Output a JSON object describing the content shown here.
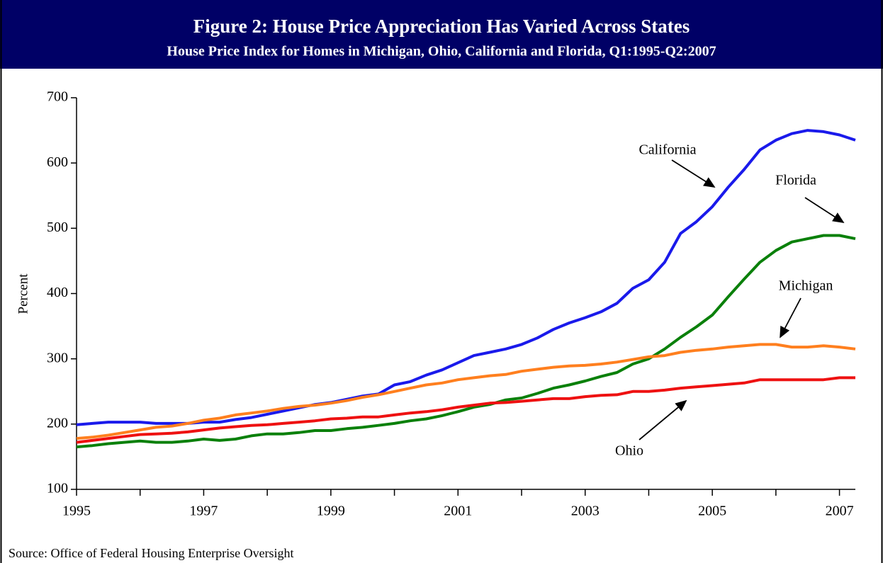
{
  "chart_data": {
    "type": "line",
    "title": "Figure 2: House Price Appreciation Has Varied Across States",
    "subtitle": "House Price Index for Homes in Michigan, Ohio, California and Florida, Q1:1995-Q2:2007",
    "y_label": "Percent",
    "source": "Source: Office of Federal Housing Enterprise Oversight",
    "x": [
      1995,
      1995.25,
      1995.5,
      1995.75,
      1996,
      1996.25,
      1996.5,
      1996.75,
      1997,
      1997.25,
      1997.5,
      1997.75,
      1998,
      1998.25,
      1998.5,
      1998.75,
      1999,
      1999.25,
      1999.5,
      1999.75,
      2000,
      2000.25,
      2000.5,
      2000.75,
      2001,
      2001.25,
      2001.5,
      2001.75,
      2002,
      2002.25,
      2002.5,
      2002.75,
      2003,
      2003.25,
      2003.5,
      2003.75,
      2004,
      2004.25,
      2004.5,
      2004.75,
      2005,
      2005.25,
      2005.5,
      2005.75,
      2006,
      2006.25,
      2006.5,
      2006.75,
      2007,
      2007.25
    ],
    "series": [
      {
        "name": "California",
        "color": "#1a1aeb",
        "values": [
          199,
          201,
          203,
          203,
          203,
          201,
          201,
          201,
          203,
          203,
          207,
          210,
          215,
          220,
          225,
          230,
          233,
          238,
          243,
          246,
          260,
          265,
          275,
          283,
          294,
          305,
          310,
          315,
          322,
          332,
          345,
          355,
          363,
          372,
          385,
          408,
          421,
          448,
          492,
          510,
          533,
          563,
          590,
          620,
          635,
          645,
          650,
          648,
          643,
          635
        ]
      },
      {
        "name": "Florida",
        "color": "#0a800a",
        "values": [
          165,
          167,
          170,
          172,
          174,
          172,
          172,
          174,
          177,
          175,
          177,
          182,
          185,
          185,
          187,
          190,
          190,
          193,
          195,
          198,
          201,
          205,
          208,
          213,
          219,
          226,
          230,
          237,
          240,
          247,
          255,
          260,
          266,
          273,
          279,
          292,
          300,
          315,
          333,
          349,
          367,
          395,
          422,
          448,
          466,
          479,
          484,
          489,
          489,
          484
        ]
      },
      {
        "name": "Michigan",
        "color": "#ff7f1e",
        "values": [
          178,
          180,
          183,
          187,
          191,
          195,
          197,
          201,
          206,
          209,
          214,
          217,
          220,
          224,
          227,
          229,
          232,
          236,
          241,
          245,
          250,
          255,
          260,
          263,
          268,
          271,
          274,
          276,
          281,
          284,
          287,
          289,
          290,
          292,
          295,
          299,
          303,
          305,
          310,
          313,
          315,
          318,
          320,
          322,
          322,
          318,
          318,
          320,
          318,
          315
        ]
      },
      {
        "name": "Ohio",
        "color": "#ee1111",
        "values": [
          172,
          175,
          178,
          181,
          184,
          185,
          186,
          188,
          191,
          194,
          196,
          198,
          199,
          201,
          203,
          205,
          208,
          209,
          211,
          211,
          214,
          217,
          219,
          222,
          226,
          229,
          232,
          233,
          235,
          237,
          239,
          239,
          242,
          244,
          245,
          250,
          250,
          252,
          255,
          257,
          259,
          261,
          263,
          268,
          268,
          268,
          268,
          268,
          271,
          271
        ]
      }
    ],
    "xlim": [
      1995,
      2007.25
    ],
    "xticks": [
      1995,
      1997,
      1999,
      2001,
      2003,
      2005,
      2007
    ],
    "xminorticks": [
      1996,
      1998,
      2000,
      2002,
      2004,
      2006
    ],
    "ylim": [
      100,
      700
    ],
    "yticks": [
      100,
      200,
      300,
      400,
      500,
      600,
      700
    ],
    "grid": false
  }
}
